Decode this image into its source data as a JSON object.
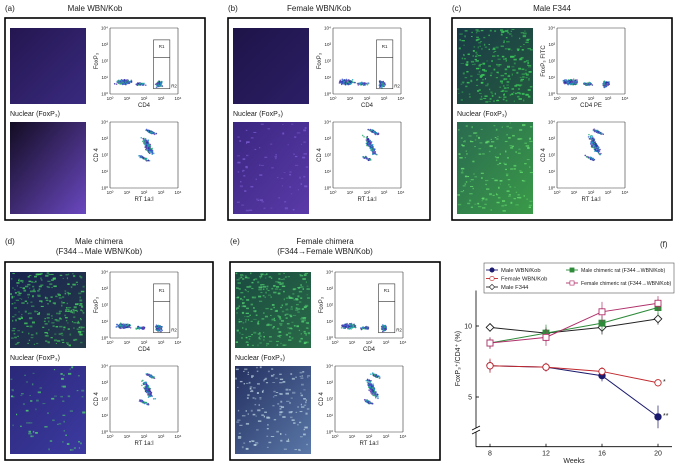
{
  "panels": [
    {
      "label": "(a)",
      "title": [
        "Male WBN/Kob"
      ],
      "top_y": "FoxP₃",
      "top_x": "CD4",
      "gates": [
        "R1",
        "R2"
      ],
      "nuclear": "Nuclear (FoxP₃)",
      "bottom_y": "CD 4",
      "bottom_x": "RT 1a:l"
    },
    {
      "label": "(b)",
      "title": [
        "Female WBN/Kob"
      ],
      "top_y": "FoxP₃",
      "top_x": "CD4",
      "gates": [
        "R1",
        "R2"
      ],
      "nuclear": "Nuclear (FoxP₃)",
      "bottom_y": "CD 4",
      "bottom_x": "RT 1a:l"
    },
    {
      "label": "(c)",
      "title": [
        "Male F344"
      ],
      "top_y": "FoxP₃ FITC",
      "top_x": "CD4 PE",
      "nuclear": "Nuclear (FoxP₃)",
      "bottom_y": "CD 4",
      "bottom_x": "RT 1a:l"
    },
    {
      "label": "(d)",
      "title": [
        "Male chimera",
        "(F344→Male WBN/Kob)"
      ],
      "top_y": "FoxP₃",
      "top_x": "CD4",
      "gates": [
        "R1",
        "R2"
      ],
      "nuclear": "Nuclear (FoxP₃)",
      "bottom_y": "CD 4",
      "bottom_x": "RT 1a:l"
    },
    {
      "label": "(e)",
      "title": [
        "Female chimera",
        "(F344→Female WBN/Kob)"
      ],
      "top_y": "FoxP₃",
      "top_x": "CD4",
      "gates": [
        "R1",
        "R2"
      ],
      "nuclear": "Nuclear (FoxP₃)",
      "bottom_y": "CD 4",
      "bottom_x": "RT 1a:l"
    }
  ],
  "flow_ticks": [
    "10⁰",
    "10¹",
    "10²",
    "10³",
    "10⁴"
  ],
  "chart_data": {
    "type": "line",
    "label": "(f)",
    "x_label": "Weeks",
    "y_label": "FoxP₃⁺/CD4⁺ (%)",
    "x": [
      8,
      12,
      16,
      20
    ],
    "xlim": [
      7,
      21
    ],
    "xticks": [
      8,
      12,
      16,
      20
    ],
    "ylim": [
      1.5,
      12.5
    ],
    "yticks": [
      5,
      10
    ],
    "axis_break": true,
    "series": [
      {
        "name": "Male WBN/Kob",
        "color": "#1a1a6e",
        "marker": "circle",
        "filled": true,
        "values": [
          7.2,
          7.1,
          6.5,
          3.6
        ],
        "errors": [
          0.4,
          0.3,
          0.4,
          0.8
        ]
      },
      {
        "name": "Female WBN/Kob",
        "color": "#c0282d",
        "marker": "circle",
        "filled": false,
        "values": [
          7.2,
          7.1,
          6.8,
          6.0
        ],
        "errors": [
          0.5,
          0.3,
          0.3,
          0.2
        ]
      },
      {
        "name": "Male F344",
        "color": "#222222",
        "marker": "diamond",
        "filled": false,
        "values": [
          9.9,
          9.5,
          9.9,
          10.5
        ],
        "errors": [
          0.3,
          0.4,
          0.5,
          0.4
        ]
      },
      {
        "name": "Male chimeric rat (F344→WBN/Kob)",
        "color": "#2e8b3a",
        "marker": "square",
        "filled": true,
        "values": [
          8.8,
          9.5,
          10.2,
          11.3
        ],
        "errors": [
          0.4,
          0.6,
          0.5,
          0.6
        ]
      },
      {
        "name": "Female chimeric rat (F344→WBN/Kob)",
        "color": "#b0306a",
        "marker": "square",
        "filled": false,
        "values": [
          8.8,
          9.2,
          11.0,
          11.6
        ],
        "errors": [
          0.4,
          0.6,
          0.7,
          0.5
        ]
      }
    ],
    "annotations": [
      "**",
      "*"
    ]
  }
}
